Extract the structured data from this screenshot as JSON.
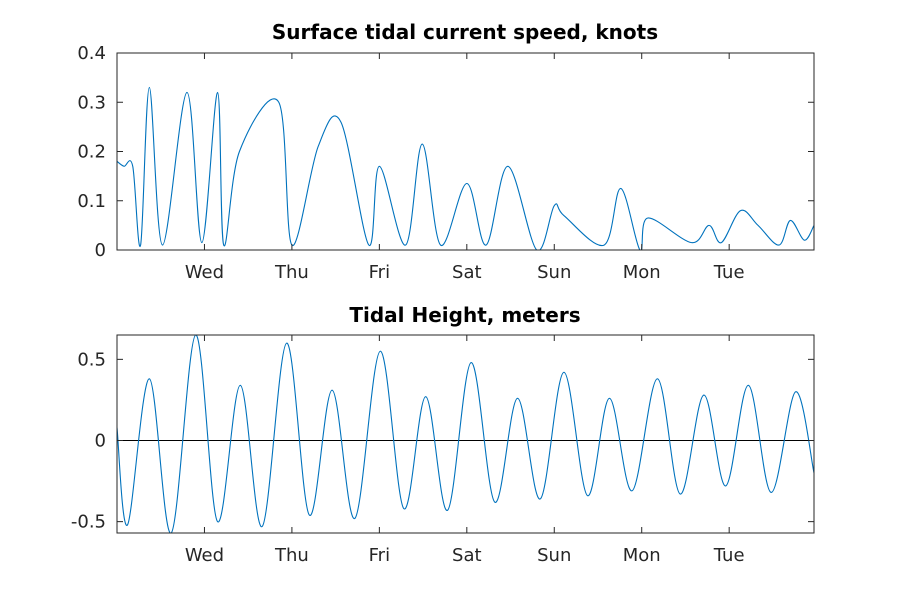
{
  "chart_data": [
    {
      "type": "line",
      "title": "Surface tidal current speed, knots",
      "xlabel": "",
      "ylabel": "",
      "xlim": [
        0,
        7.97
      ],
      "ylim": [
        0,
        0.4
      ],
      "yticks": [
        0,
        0.1,
        0.2,
        0.3,
        0.4
      ],
      "ytick_labels": [
        "0",
        "0.1",
        "0.2",
        "0.3",
        "0.4"
      ],
      "xticks": [
        1,
        2,
        3,
        4,
        5,
        6,
        7
      ],
      "xtick_labels": [
        "Wed",
        "Thu",
        "Fri",
        "Sat",
        "Sun",
        "Mon",
        "Tue"
      ],
      "grid": false,
      "series": [
        {
          "color": "#0072BD",
          "x": [
            0.0,
            0.08,
            0.18,
            0.27,
            0.37,
            0.52,
            0.8,
            0.97,
            1.15,
            1.22,
            1.4,
            1.85,
            2.0,
            2.3,
            2.56,
            2.88,
            3.0,
            3.3,
            3.49,
            3.7,
            4.0,
            4.22,
            4.47,
            4.8,
            5.0,
            5.11,
            5.57,
            5.76,
            5.98,
            6.07,
            6.57,
            6.77,
            6.91,
            7.13,
            7.33,
            7.57,
            7.7,
            7.86,
            7.97
          ],
          "y": [
            0.18,
            0.17,
            0.17,
            0.01,
            0.33,
            0.01,
            0.32,
            0.015,
            0.32,
            0.01,
            0.2,
            0.3,
            0.01,
            0.21,
            0.26,
            0.01,
            0.17,
            0.01,
            0.215,
            0.01,
            0.135,
            0.01,
            0.17,
            0.0,
            0.09,
            0.07,
            0.01,
            0.125,
            0.0,
            0.065,
            0.015,
            0.05,
            0.015,
            0.08,
            0.05,
            0.01,
            0.06,
            0.02,
            0.05
          ]
        }
      ]
    },
    {
      "type": "line",
      "title": "Tidal Height, meters",
      "xlabel": "",
      "ylabel": "",
      "xlim": [
        0,
        7.97
      ],
      "ylim": [
        -0.57,
        0.65
      ],
      "yticks": [
        -0.5,
        0,
        0.5
      ],
      "ytick_labels": [
        "-0.5",
        "0",
        "0.5"
      ],
      "xticks": [
        1,
        2,
        3,
        4,
        5,
        6,
        7
      ],
      "xtick_labels": [
        "Wed",
        "Thu",
        "Fri",
        "Sat",
        "Sun",
        "Mon",
        "Tue"
      ],
      "zero_line": true,
      "grid": false,
      "series": [
        {
          "color": "#0072BD",
          "x": [
            0.0,
            0.12,
            0.37,
            0.62,
            0.9,
            1.15,
            1.41,
            1.66,
            1.94,
            2.2,
            2.46,
            2.72,
            3.01,
            3.28,
            3.53,
            3.78,
            4.05,
            4.32,
            4.58,
            4.84,
            5.11,
            5.38,
            5.63,
            5.89,
            6.18,
            6.44,
            6.71,
            6.96,
            7.22,
            7.48,
            7.76,
            7.97
          ],
          "y": [
            0.08,
            -0.52,
            0.38,
            -0.57,
            0.65,
            -0.5,
            0.34,
            -0.53,
            0.6,
            -0.46,
            0.31,
            -0.48,
            0.55,
            -0.42,
            0.27,
            -0.43,
            0.48,
            -0.38,
            0.26,
            -0.36,
            0.42,
            -0.34,
            0.26,
            -0.31,
            0.38,
            -0.33,
            0.28,
            -0.28,
            0.34,
            -0.32,
            0.3,
            -0.2
          ]
        }
      ]
    }
  ]
}
